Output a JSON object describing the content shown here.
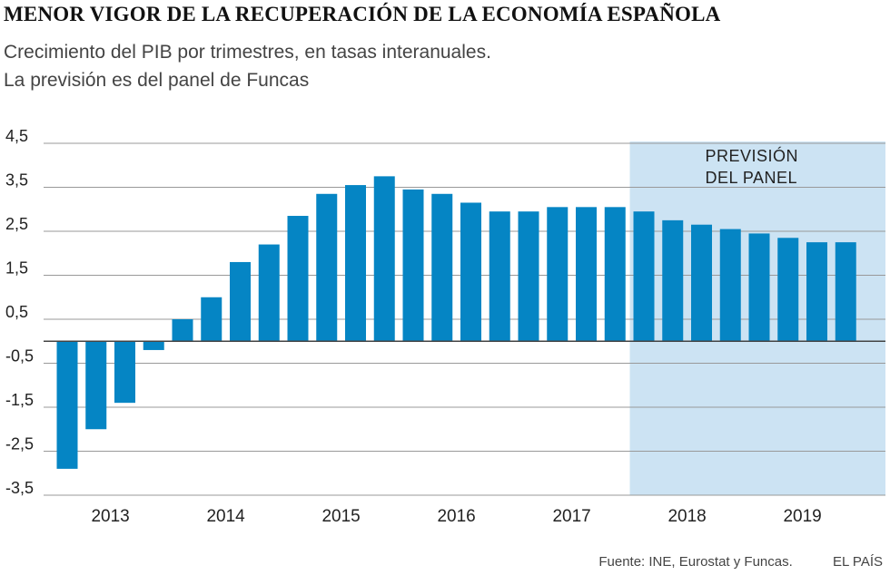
{
  "title": "MENOR VIGOR DE LA RECUPERACIÓN DE LA ECONOMÍA ESPAÑOLA",
  "subtitle": [
    "Crecimiento del PIB por trimestres, en tasas interanuales.",
    "La previsión es del panel de Funcas"
  ],
  "footer": {
    "source": "Fuente: INE, Eurostat y Funcas.",
    "brand": "EL PAÍS"
  },
  "colors": {
    "bar": "#0585c4",
    "forecast_band": "#cce3f3",
    "grid": "#999999",
    "zero_line": "#444444"
  },
  "chart_data": {
    "type": "bar",
    "ylim": [
      -3.5,
      4.5
    ],
    "yticks": [
      4.5,
      3.5,
      2.5,
      1.5,
      0.5,
      -0.5,
      -1.5,
      -2.5,
      -3.5
    ],
    "ytick_labels": [
      "4,5",
      "3,5",
      "2,5",
      "1,5",
      "0,5",
      "-0,5",
      "-1,5",
      "-2,5",
      "-3,5"
    ],
    "year_labels": [
      "2013",
      "2014",
      "2015",
      "2016",
      "2017",
      "2018",
      "2019"
    ],
    "quarters_per_year": 4,
    "values": [
      -2.9,
      -2.0,
      -1.4,
      -0.2,
      0.5,
      1.0,
      1.8,
      2.2,
      2.85,
      3.35,
      3.55,
      3.75,
      3.45,
      3.35,
      3.15,
      2.95,
      2.95,
      3.05,
      3.05,
      3.05,
      2.95,
      2.75,
      2.65,
      2.55,
      2.45,
      2.35,
      2.25,
      2.25
    ],
    "forecast_start_index": 20,
    "forecast_label": [
      "PREVISIÓN",
      "DEL PANEL"
    ]
  }
}
